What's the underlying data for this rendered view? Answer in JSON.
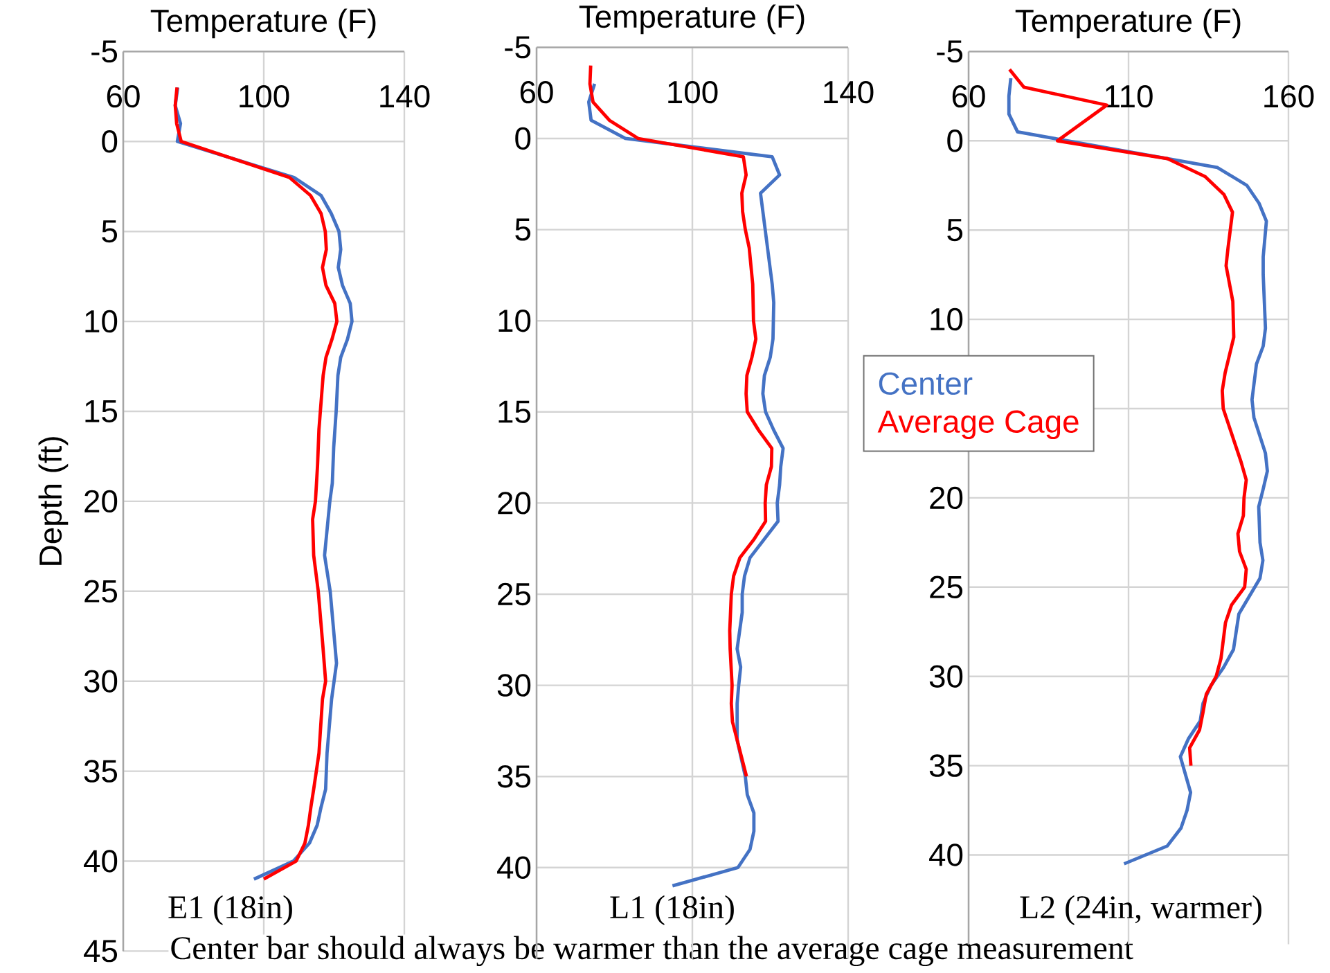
{
  "chart_data": [
    {
      "type": "line",
      "xlabel": "Temperature (F)",
      "ylabel": "Depth (ft)",
      "xlim": [
        60,
        140
      ],
      "xticks": [
        60,
        100,
        140
      ],
      "ylim": [
        45,
        -5
      ],
      "yticks": [
        -5,
        0,
        5,
        10,
        15,
        20,
        25,
        30,
        35,
        40,
        45
      ],
      "grid": true,
      "annotations": [
        "E1 (18in)",
        "Center bar should always be warmer than the average cage measurement"
      ],
      "series": [
        {
          "color": "#4472c4",
          "x": [
            75.5,
            74.8,
            76.3,
            75.4,
            108.6,
            116.3,
            119.2,
            121.4,
            121.9,
            121.2,
            122.4,
            124.6,
            125.1,
            123.8,
            121.9,
            121.1,
            120.6,
            119.9,
            119.5,
            118.8,
            117.3,
            118.9,
            119.8,
            120.7,
            119.3,
            118.0,
            117.6,
            116.3,
            115.2,
            113.0,
            108.4,
            97.2
          ],
          "values": [
            -3,
            -2,
            -1,
            0,
            2,
            3,
            4,
            5,
            6,
            7,
            8,
            9,
            10,
            11,
            12,
            13,
            15,
            17,
            19,
            20,
            23,
            25,
            27,
            29,
            31,
            34,
            36,
            37,
            38,
            39,
            40,
            41
          ]
        },
        {
          "color": "#ff0000",
          "x": [
            75.3,
            74.8,
            75.2,
            76.5,
            107.3,
            113.3,
            116.3,
            117.5,
            117.8,
            116.7,
            117.7,
            120.2,
            120.8,
            119.4,
            117.7,
            116.9,
            116.5,
            115.7,
            115.3,
            115.0,
            114.7,
            113.9,
            114.2,
            115.5,
            116.8,
            117.6,
            116.7,
            115.7,
            114.2,
            113.4,
            112.7,
            111.7,
            109.2,
            100.0
          ],
          "values": [
            -3,
            -2,
            -1,
            0,
            2,
            3,
            4,
            5,
            6,
            7,
            8,
            9,
            10,
            11,
            12,
            13,
            14,
            16,
            18,
            19,
            20,
            21,
            23,
            25,
            28,
            30,
            31,
            34,
            36,
            37,
            38,
            39,
            40,
            41
          ]
        }
      ]
    },
    {
      "type": "line",
      "xlabel": "Temperature (F)",
      "xlim": [
        60,
        140
      ],
      "xticks": [
        60,
        100,
        140
      ],
      "ylim": [
        45,
        -5
      ],
      "yticks": [
        -5,
        0,
        5,
        10,
        15,
        20,
        25,
        30,
        35,
        40
      ],
      "grid": true,
      "annotations": [
        "L1 (18in)"
      ],
      "series": [
        {
          "color": "#4472c4",
          "x": [
            74.9,
            73.4,
            74.0,
            82.8,
            120.5,
            122.4,
            117.5,
            118.7,
            120.5,
            120.9,
            120.7,
            120.0,
            118.5,
            118.1,
            118.8,
            120.9,
            123.3,
            122.7,
            122.4,
            121.8,
            122.0,
            118.4,
            114.8,
            113.4,
            112.8,
            112.8,
            111.5,
            112.4,
            111.9,
            111.5,
            111.5,
            113.6,
            114.1,
            115.8,
            115.8,
            114.8,
            111.7,
            94.9
          ],
          "values": [
            -3,
            -2,
            -1,
            0,
            1,
            2,
            3,
            5,
            8,
            9,
            11,
            12,
            13,
            14,
            15,
            16,
            17,
            18,
            19,
            20,
            21,
            22,
            23,
            24,
            25,
            26,
            28,
            29,
            30,
            31,
            33,
            35,
            36,
            37,
            38,
            39,
            40,
            41
          ]
        },
        {
          "color": "#ff0000",
          "x": [
            73.9,
            73.7,
            74.5,
            78.7,
            86.1,
            113.1,
            113.8,
            112.7,
            112.9,
            113.6,
            114.6,
            115.5,
            115.7,
            116.3,
            115.3,
            114.0,
            113.8,
            114.1,
            117.0,
            120.4,
            120.3,
            119.0,
            118.7,
            118.8,
            115.8,
            112.2,
            110.6,
            110.0,
            109.6,
            109.7,
            110.2,
            110.0,
            110.3,
            111.5,
            113.9
          ],
          "values": [
            -4,
            -3,
            -2,
            -1,
            0,
            1,
            2,
            3,
            4,
            5,
            6,
            8,
            10,
            11,
            12,
            13,
            14,
            15,
            16,
            17,
            18,
            19,
            20,
            21,
            22,
            23,
            24,
            25,
            27,
            28,
            30,
            31,
            32,
            33,
            35
          ]
        }
      ]
    },
    {
      "type": "line",
      "xlabel": "Temperature (F)",
      "xlim": [
        60,
        160
      ],
      "xticks": [
        60,
        110,
        160
      ],
      "ylim": [
        45,
        -5
      ],
      "yticks": [
        -5,
        0,
        5,
        10,
        {
          "value": 15,
          "label": null
        },
        20,
        25,
        30,
        35,
        40
      ],
      "grid": true,
      "legend": "left",
      "annotations": [
        "L2 (24in, warmer)"
      ],
      "series": [
        {
          "name": "Center",
          "color": "#4472c4",
          "x": [
            73.2,
            72.6,
            72.6,
            75.3,
            137.8,
            147.0,
            150.8,
            153.1,
            152.1,
            152.1,
            152.8,
            152.1,
            150.0,
            148.6,
            149.2,
            152.8,
            153.4,
            152.1,
            150.7,
            151.1,
            152.0,
            151.1,
            144.5,
            142.8,
            139.7,
            135.8,
            133.3,
            132.4,
            128.7,
            126.2,
            129.4,
            128.3,
            126.4,
            122.1,
            108.6
          ],
          "values": [
            -3.5,
            -2.5,
            -1.5,
            -0.5,
            1.5,
            2.5,
            3.5,
            4.5,
            6.5,
            7.5,
            10.5,
            11.5,
            12.5,
            14.5,
            15.5,
            17.5,
            18.5,
            19.5,
            20.5,
            22.5,
            23.5,
            24.5,
            26.5,
            28.5,
            29.5,
            30.5,
            31.5,
            32.5,
            33.5,
            34.5,
            36.5,
            37.5,
            38.5,
            39.5,
            40.5
          ]
        },
        {
          "name": "Average Cage",
          "color": "#ff0000",
          "x": [
            72.8,
            77.3,
            103.2,
            87.8,
            122.2,
            133.9,
            139.8,
            142.5,
            141.1,
            140.5,
            142.6,
            142.9,
            140.2,
            139.3,
            139.6,
            145.2,
            146.8,
            146.1,
            145.9,
            144.2,
            144.7,
            146.8,
            146.3,
            142.2,
            140.3,
            138.9,
            137.4,
            134.3,
            133.3,
            132.2,
            129.1,
            129.5
          ],
          "values": [
            -4,
            -3,
            -2,
            0,
            1,
            2,
            3,
            4,
            6,
            7,
            9,
            11,
            13,
            14,
            15,
            18,
            19,
            20,
            21,
            22,
            23,
            24,
            25,
            26,
            27,
            29,
            30,
            31,
            32,
            33,
            34,
            35
          ]
        }
      ]
    }
  ]
}
